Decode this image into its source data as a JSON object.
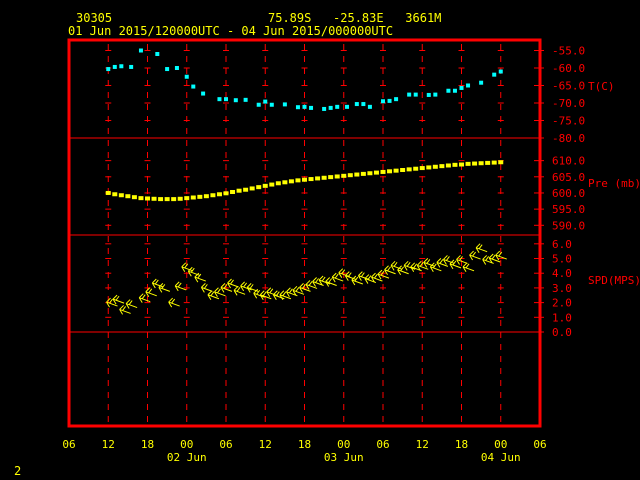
{
  "header": {
    "station": "30305",
    "location": "75.89S   -25.83E   3661M",
    "period": "01 Jun 2015/120000UTC - 04 Jun 2015/000000UTC"
  },
  "footer": {
    "page_number": "2"
  },
  "colors": {
    "background": "#000000",
    "frame": "#ff0000",
    "grid": "#ff0000",
    "axis_text": "#ffff00",
    "label_text": "#ff0000",
    "temperature": "#00ffff",
    "pressure": "#ffff00",
    "wind": "#ffff00"
  },
  "chart_data": {
    "type": "scatter",
    "x_axis": {
      "range_hours": [
        -6,
        66
      ],
      "ticks": [
        {
          "hour": -6,
          "label": "06"
        },
        {
          "hour": 0,
          "label": "12"
        },
        {
          "hour": 6,
          "label": "18"
        },
        {
          "hour": 12,
          "label": "00"
        },
        {
          "hour": 18,
          "label": "06"
        },
        {
          "hour": 24,
          "label": "12"
        },
        {
          "hour": 30,
          "label": "18"
        },
        {
          "hour": 36,
          "label": "00"
        },
        {
          "hour": 42,
          "label": "06"
        },
        {
          "hour": 48,
          "label": "12"
        },
        {
          "hour": 54,
          "label": "18"
        },
        {
          "hour": 60,
          "label": "00"
        },
        {
          "hour": 66,
          "label": "06"
        }
      ],
      "date_labels": [
        {
          "hour": 12,
          "label": "02 Jun"
        },
        {
          "hour": 36,
          "label": "03 Jun"
        },
        {
          "hour": 60,
          "label": "04 Jun"
        }
      ]
    },
    "panels": [
      {
        "name": "T(C)",
        "range": [
          -80,
          -52
        ],
        "ticks": [
          {
            "value": -55,
            "label": "-55.0"
          },
          {
            "value": -60,
            "label": "-60.0"
          },
          {
            "value": -65,
            "label": "-65.0"
          },
          {
            "value": -70,
            "label": "-70.0"
          },
          {
            "value": -75,
            "label": "-75.0"
          },
          {
            "value": -80,
            "label": "-80.0"
          }
        ],
        "series": {
          "x": [
            0,
            1,
            2,
            3.5,
            5,
            7.5,
            9,
            10.5,
            12,
            13,
            14.5,
            17,
            18,
            19.5,
            21,
            23,
            24,
            25,
            27,
            29,
            30,
            31,
            33,
            34,
            35,
            36.5,
            38,
            39,
            40,
            42,
            43,
            44,
            46,
            47,
            49,
            50,
            52,
            53,
            54,
            55,
            57,
            59,
            60
          ],
          "y": [
            -60.3,
            -59.7,
            -59.5,
            -59.7,
            -55,
            -56,
            -60.3,
            -60,
            -62.5,
            -65.3,
            -67.3,
            -68.9,
            -68.9,
            -69.2,
            -69.1,
            -70.5,
            -69.6,
            -70.5,
            -70.4,
            -71.2,
            -71.1,
            -71.4,
            -71.7,
            -71.4,
            -71.1,
            -71.1,
            -70.3,
            -70.3,
            -71.1,
            -69.5,
            -69.4,
            -68.9,
            -67.6,
            -67.6,
            -67.7,
            -67.6,
            -66.5,
            -66.5,
            -65.7,
            -65,
            -64.2,
            -61.9,
            -61
          ]
        }
      },
      {
        "name": "Pre (mb)",
        "range": [
          587,
          617
        ],
        "ticks": [
          {
            "value": 590,
            "label": "590.0"
          },
          {
            "value": 595,
            "label": "595.0"
          },
          {
            "value": 600,
            "label": "600.0"
          },
          {
            "value": 605,
            "label": "605.0"
          },
          {
            "value": 610,
            "label": "610.0"
          }
        ],
        "series": {
          "x": [
            0,
            1,
            2,
            3,
            4,
            5,
            6,
            7,
            8,
            9,
            10,
            11,
            12,
            13,
            14,
            15,
            16,
            17,
            18,
            19,
            20,
            21,
            22,
            23,
            24,
            25,
            26,
            27,
            28,
            29,
            30,
            31,
            32,
            33,
            34,
            35,
            36,
            37,
            38,
            39,
            40,
            41,
            42,
            43,
            44,
            45,
            46,
            47,
            48,
            49,
            50,
            51,
            52,
            53,
            54,
            55,
            56,
            57,
            58,
            59,
            60
          ],
          "y": [
            600,
            599.6,
            599.3,
            599,
            598.7,
            598.4,
            598.3,
            598.2,
            598.1,
            598.1,
            598.1,
            598.2,
            598.4,
            598.6,
            598.8,
            599,
            599.3,
            599.6,
            599.9,
            600.3,
            600.7,
            601,
            601.4,
            601.8,
            602.2,
            602.6,
            603,
            603.3,
            603.6,
            603.9,
            604.1,
            604.3,
            604.5,
            604.7,
            604.9,
            605.1,
            605.3,
            605.5,
            605.7,
            605.9,
            606.1,
            606.3,
            606.5,
            606.7,
            606.9,
            607.1,
            607.3,
            607.5,
            607.7,
            607.9,
            608.1,
            608.3,
            608.5,
            608.7,
            608.8,
            609,
            609.1,
            609.2,
            609.3,
            609.4,
            609.5
          ]
        }
      },
      {
        "name": "SPD(MPS)",
        "range": [
          0,
          6.6
        ],
        "ticks": [
          {
            "value": 0,
            "label": "0.0"
          },
          {
            "value": 1,
            "label": "1.0"
          },
          {
            "value": 2,
            "label": "2.0"
          },
          {
            "value": 3,
            "label": "3.0"
          },
          {
            "value": 4,
            "label": "4.0"
          },
          {
            "value": 5,
            "label": "5.0"
          },
          {
            "value": 6,
            "label": "6.0"
          }
        ],
        "series": {
          "x": [
            0.5,
            1.5,
            2.5,
            3.5,
            5.5,
            6.5,
            7.5,
            8.5,
            10,
            11,
            12,
            13,
            14,
            15,
            16,
            17,
            18,
            19,
            20,
            21,
            22,
            23,
            24,
            25,
            26,
            27,
            28,
            29,
            30,
            31,
            32,
            33,
            34,
            35,
            36,
            37,
            38,
            39,
            40,
            41,
            42,
            43,
            44,
            45,
            46,
            47,
            48,
            49,
            50,
            51,
            52,
            53,
            54,
            55,
            56,
            57,
            58,
            59,
            60
          ],
          "y": [
            1.9,
            2.1,
            1.4,
            1.8,
            2.2,
            2.6,
            3.2,
            2.9,
            1.9,
            3.0,
            4.3,
            4.0,
            3.6,
            2.9,
            2.4,
            2.6,
            2.9,
            3.2,
            2.7,
            3.0,
            2.9,
            2.5,
            2.4,
            2.6,
            2.4,
            2.4,
            2.6,
            2.7,
            2.9,
            3.1,
            3.3,
            3.4,
            3.3,
            3.6,
            3.9,
            3.7,
            3.4,
            3.7,
            3.5,
            3.6,
            3.8,
            4.1,
            4.4,
            4.1,
            4.4,
            4.3,
            4.4,
            4.6,
            4.3,
            4.6,
            4.8,
            4.5,
            4.8,
            4.3,
            5.1,
            5.6,
            4.8,
            4.9,
            5.1
          ]
        }
      }
    ]
  }
}
